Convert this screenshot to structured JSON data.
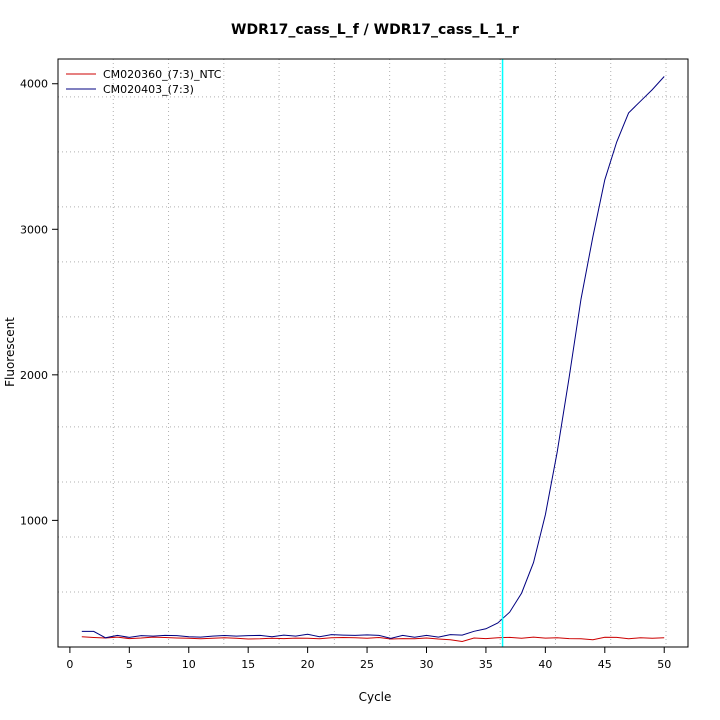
{
  "chart_data": {
    "type": "line",
    "title": "WDR17_cass_L_f / WDR17_cass_L_1_r",
    "xlabel": "Cycle",
    "ylabel": "Fluorescent",
    "xlim": [
      -1,
      52
    ],
    "ylim": [
      130,
      4170
    ],
    "xticks": [
      0,
      5,
      10,
      15,
      20,
      25,
      30,
      35,
      40,
      45,
      50
    ],
    "yticks": [
      1000,
      2000,
      3000,
      4000
    ],
    "grid": true,
    "legend_position": "top-left",
    "threshold_line": {
      "x": 36.4,
      "color": "#00FFFF"
    },
    "series": [
      {
        "name": "CM020360_(7:3)_NTC",
        "color": "#CC0000",
        "x": [
          1,
          2,
          3,
          4,
          5,
          6,
          7,
          8,
          9,
          10,
          11,
          12,
          13,
          14,
          15,
          16,
          17,
          18,
          19,
          20,
          21,
          22,
          23,
          24,
          25,
          26,
          27,
          28,
          29,
          30,
          31,
          32,
          33,
          34,
          35,
          36,
          37,
          38,
          39,
          40,
          41,
          42,
          43,
          44,
          45,
          46,
          47,
          48,
          49,
          50
        ],
        "values": [
          200,
          195,
          192,
          198,
          188,
          192,
          198,
          195,
          192,
          190,
          187,
          190,
          193,
          190,
          185,
          186,
          190,
          188,
          191,
          190,
          186,
          193,
          195,
          194,
          190,
          195,
          185,
          188,
          187,
          192,
          185,
          180,
          168,
          192,
          188,
          193,
          196,
          190,
          198,
          191,
          194,
          188,
          186,
          180,
          197,
          196,
          186,
          193,
          190,
          193
        ]
      },
      {
        "name": "CM020403_(7:3)",
        "color": "#000080",
        "x": [
          1,
          2,
          3,
          4,
          5,
          6,
          7,
          8,
          9,
          10,
          11,
          12,
          13,
          14,
          15,
          16,
          17,
          18,
          19,
          20,
          21,
          22,
          23,
          24,
          25,
          26,
          27,
          28,
          29,
          30,
          31,
          32,
          33,
          34,
          35,
          36,
          37,
          38,
          39,
          40,
          41,
          42,
          43,
          44,
          45,
          46,
          47,
          48,
          49,
          50
        ],
        "values": [
          237,
          237,
          193,
          210,
          196,
          208,
          205,
          210,
          208,
          200,
          198,
          205,
          209,
          205,
          208,
          210,
          200,
          212,
          205,
          218,
          200,
          215,
          212,
          210,
          213,
          210,
          190,
          210,
          197,
          210,
          198,
          215,
          212,
          238,
          255,
          295,
          370,
          500,
          710,
          1040,
          1470,
          1980,
          2520,
          2950,
          3340,
          3600,
          3800,
          3880,
          3960,
          4050
        ]
      }
    ]
  }
}
